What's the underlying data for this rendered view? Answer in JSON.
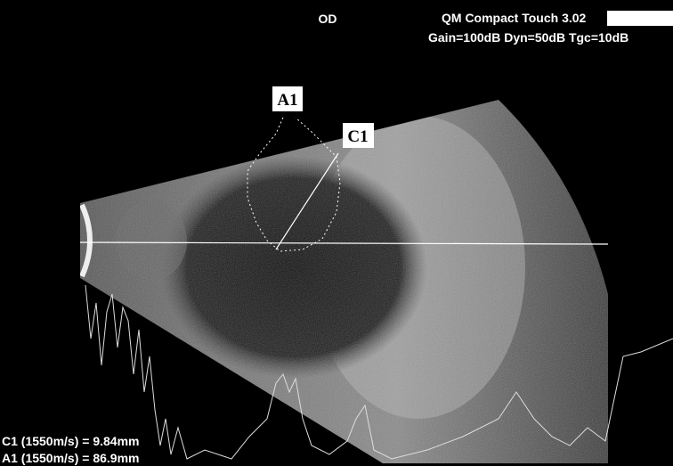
{
  "header": {
    "eye": "OD",
    "device": "QM Compact Touch 3.02",
    "settings": "Gain=100dB Dyn=50dB Tgc=10dB"
  },
  "markers": {
    "a": "A1",
    "c": "C1"
  },
  "measurements": [
    "C1 (1550m/s) = 9.84mm",
    "A1 (1550m/s) = 86.9mm"
  ]
}
